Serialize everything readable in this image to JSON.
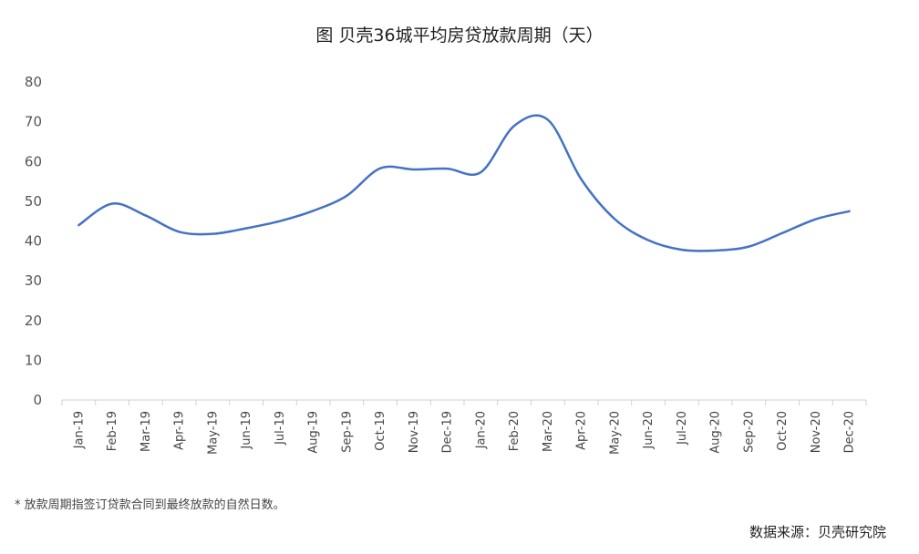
{
  "chart_data": {
    "type": "line",
    "title": "图 贝壳36城平均房贷放款周期（天）",
    "categories": [
      "Jan-19",
      "Feb-19",
      "Mar-19",
      "Apr-19",
      "May-19",
      "Jun-19",
      "Jul-19",
      "Aug-19",
      "Sep-19",
      "Oct-19",
      "Nov-19",
      "Dec-19",
      "Jan-20",
      "Feb-20",
      "Mar-20",
      "Apr-20",
      "May-20",
      "Jun-20",
      "Jul-20",
      "Aug-20",
      "Sep-20",
      "Oct-20",
      "Nov-20",
      "Dec-20"
    ],
    "series": [
      {
        "values": [
          44,
          49.4,
          46.4,
          42.3,
          41.8,
          43.2,
          45,
          47.6,
          51.4,
          58.3,
          58,
          58.2,
          57.3,
          69,
          70.5,
          55.5,
          45.5,
          40.2,
          37.8,
          37.6,
          38.6,
          42,
          45.5,
          47.5
        ],
        "color": "#4472c4"
      }
    ],
    "yticks": [
      0,
      10,
      20,
      30,
      40,
      50,
      60,
      70,
      80
    ],
    "ylim": [
      0,
      80
    ],
    "grid": false
  },
  "footnote": "* 放款周期指签订贷款合同到最终放款的自然日数。",
  "source": "数据来源：贝壳研究院"
}
